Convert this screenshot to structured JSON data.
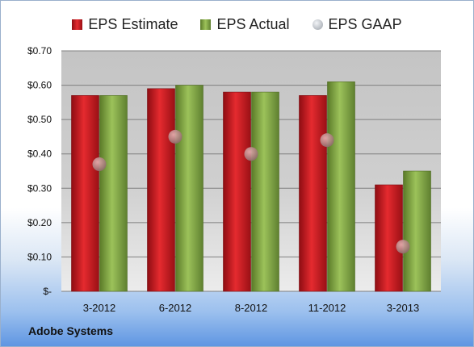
{
  "chart_data": {
    "type": "bar",
    "categories": [
      "3-2012",
      "6-2012",
      "8-2012",
      "11-2012",
      "3-2013"
    ],
    "series": [
      {
        "name": "EPS Estimate",
        "type": "bar",
        "values": [
          0.57,
          0.59,
          0.58,
          0.57,
          0.31
        ],
        "color": "#c9161d"
      },
      {
        "name": "EPS Actual",
        "type": "bar",
        "values": [
          0.57,
          0.6,
          0.58,
          0.61,
          0.35
        ],
        "color": "#7a9d3d"
      },
      {
        "name": "EPS GAAP",
        "type": "scatter",
        "values": [
          0.37,
          0.45,
          0.4,
          0.44,
          0.13
        ],
        "color": "#b5b8bd"
      }
    ],
    "ylim": [
      0,
      0.7
    ],
    "yticks": [
      0,
      0.1,
      0.2,
      0.3,
      0.4,
      0.5,
      0.6,
      0.7
    ],
    "ytick_labels": [
      "$-",
      "$0.10",
      "$0.20",
      "$0.30",
      "$0.40",
      "$0.50",
      "$0.60",
      "$0.70"
    ],
    "grid": true,
    "legend": "top"
  },
  "footer": {
    "company": "Adobe Systems"
  }
}
